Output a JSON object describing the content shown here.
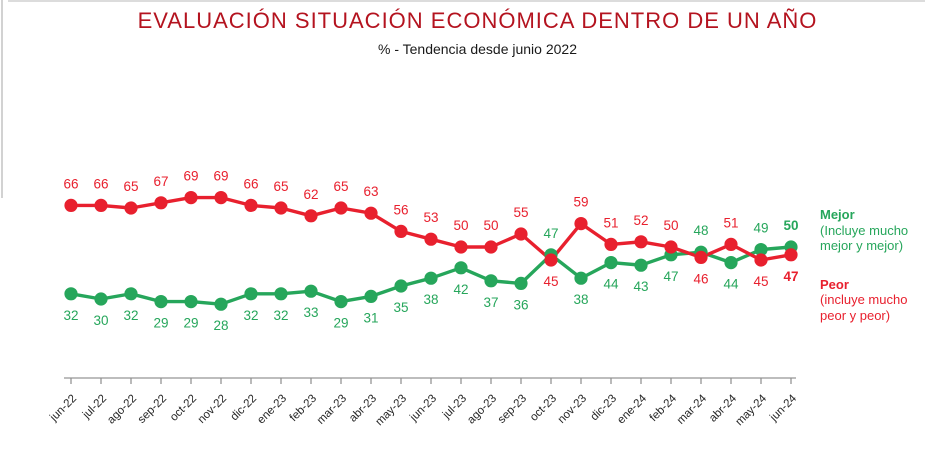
{
  "title": "EVALUACIÓN SITUACIÓN ECONÓMICA DENTRO DE UN AÑO",
  "subtitle": "% - Tendencia desde junio 2022",
  "colors": {
    "title": "#b4131f",
    "mejor": "#26a65b",
    "peor": "#e8202e",
    "axis_line": "#bdbdbd",
    "tick": "#8c8c8c",
    "tick_label": "#262626"
  },
  "legend": {
    "mejor": {
      "label": "Mejor",
      "detail": "(Incluye mucho mejor y mejor)"
    },
    "peor": {
      "label": "Peor",
      "detail": "(incluye mucho peor y peor)"
    }
  },
  "chart_data": {
    "type": "line",
    "title": "EVALUACIÓN SITUACIÓN ECONÓMICA DENTRO DE UN AÑO",
    "subtitle": "% - Tendencia desde junio 2022",
    "categories": [
      "jun-22",
      "jul-22",
      "ago-22",
      "sep-22",
      "oct-22",
      "nov-22",
      "dic-22",
      "ene-23",
      "feb-23",
      "mar-23",
      "abr-23",
      "may-23",
      "jun-23",
      "jul-23",
      "ago-23",
      "sep-23",
      "oct-23",
      "nov-23",
      "dic-23",
      "ene-24",
      "feb-24",
      "mar-24",
      "abr-24",
      "may-24",
      "jun-24"
    ],
    "series": [
      {
        "key": "peor",
        "name": "Peor (incluye mucho peor y peor)",
        "color": "#e8202e",
        "values": [
          66,
          66,
          65,
          67,
          69,
          69,
          66,
          65,
          62,
          65,
          63,
          56,
          53,
          50,
          50,
          55,
          45,
          59,
          51,
          52,
          50,
          46,
          51,
          45,
          47
        ]
      },
      {
        "key": "mejor",
        "name": "Mejor (Incluye mucho mejor y mejor)",
        "color": "#26a65b",
        "values": [
          32,
          30,
          32,
          29,
          29,
          28,
          32,
          32,
          33,
          29,
          31,
          35,
          38,
          42,
          37,
          36,
          47,
          38,
          44,
          43,
          47,
          48,
          44,
          49,
          50
        ]
      }
    ],
    "ylim": [
      25,
      72
    ],
    "grid": false,
    "data_labels": true,
    "last_point_bold": true,
    "legend_position": "right",
    "x_label_rotation": -45
  }
}
